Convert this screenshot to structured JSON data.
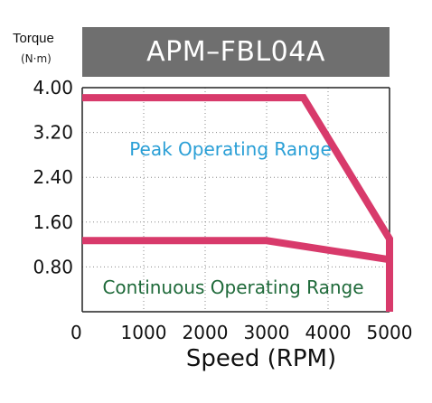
{
  "chart_data": {
    "type": "line",
    "title": "APM–FBL04A",
    "ylabel": "Torque",
    "yunit": "(N·m)",
    "xlabel": "Speed (RPM)",
    "xlim": [
      0,
      5000
    ],
    "ylim": [
      0,
      4.0
    ],
    "xticks": [
      "0",
      "1000",
      "2000",
      "3000",
      "4000",
      "5000"
    ],
    "yticks": [
      "4.00",
      "3.20",
      "2.40",
      "1.60",
      "0.80"
    ],
    "grid": true,
    "series": [
      {
        "name": "Peak Operating Range",
        "color": "#d83a6b",
        "label_color": "#2a9fd6",
        "x": [
          0,
          3600,
          5000,
          5000
        ],
        "y": [
          3.82,
          3.82,
          1.3,
          0
        ]
      },
      {
        "name": "Continuous Operating Range",
        "color": "#d83a6b",
        "label_color": "#1f6a3a",
        "x": [
          0,
          3000,
          5000
        ],
        "y": [
          1.27,
          1.27,
          0.93
        ]
      }
    ]
  }
}
